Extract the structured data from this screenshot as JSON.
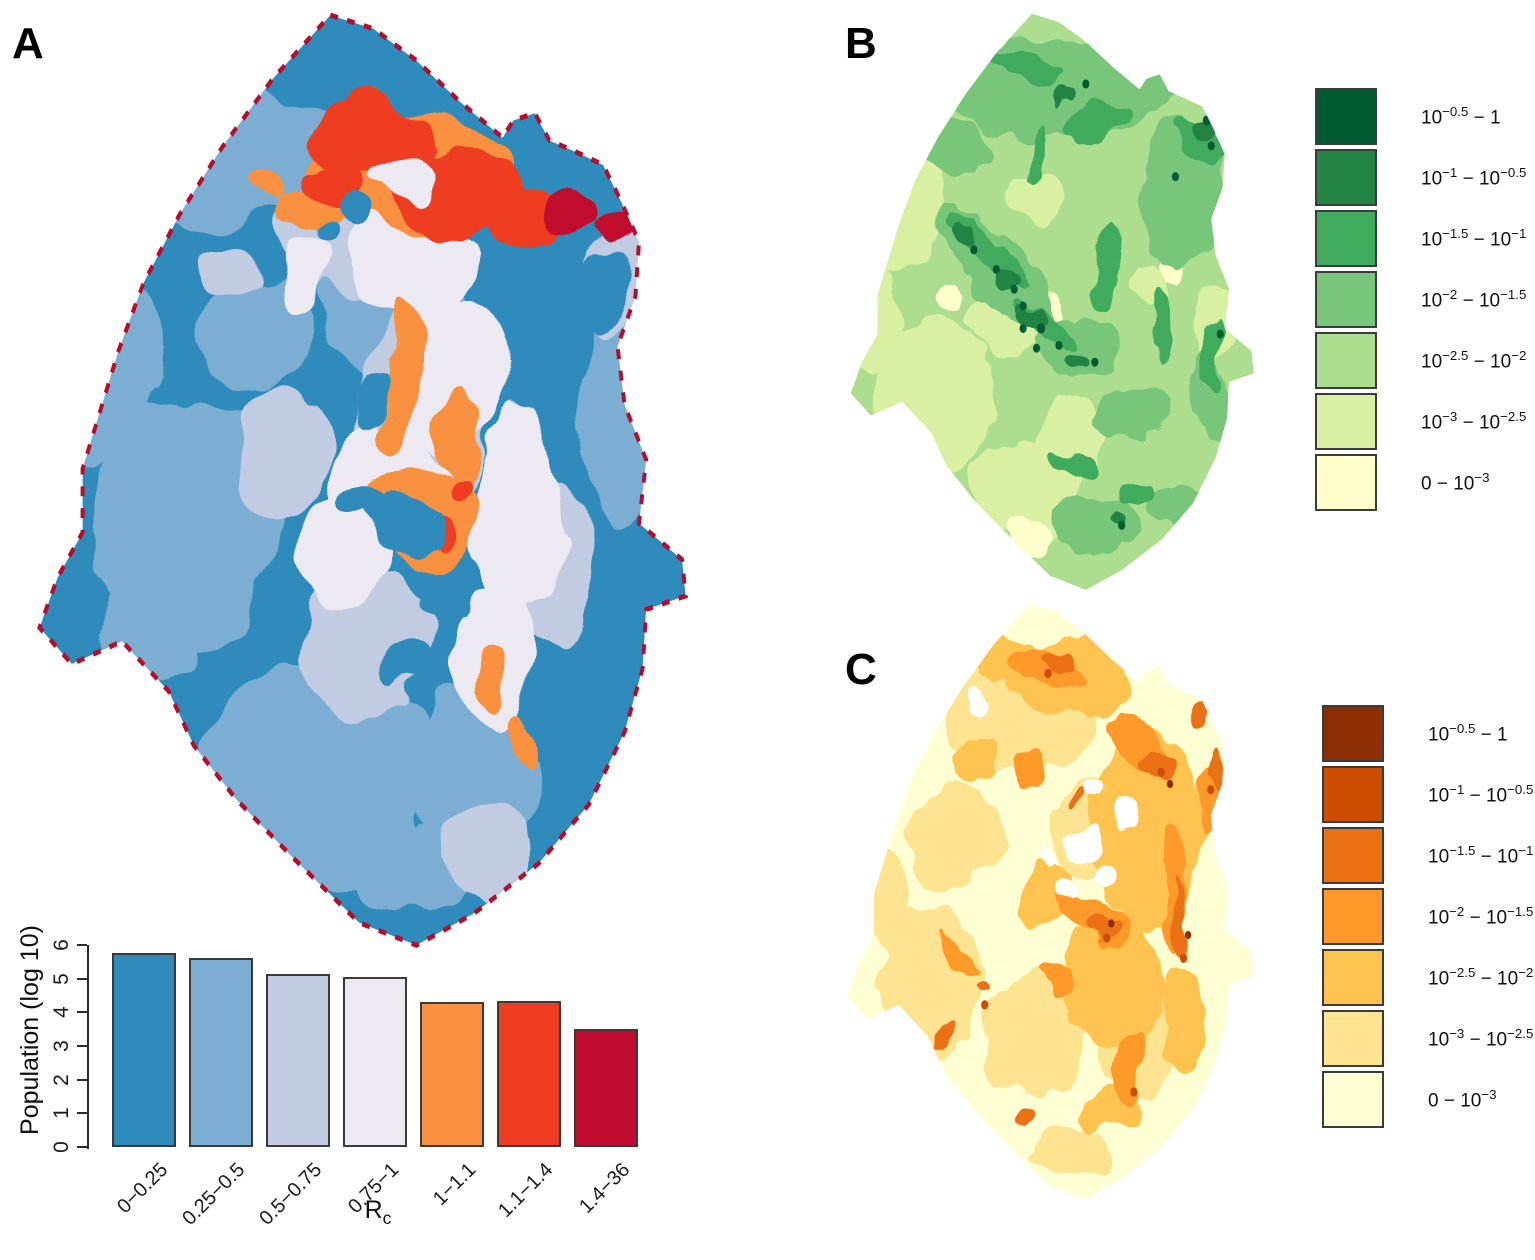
{
  "figure": {
    "background": "#ffffff"
  },
  "panels": {
    "a": {
      "label": "A"
    },
    "b": {
      "label": "B"
    },
    "c": {
      "label": "C"
    }
  },
  "palettes": {
    "a": [
      "#2f8bbb",
      "#7caed3",
      "#c1cbe2",
      "#ece9f2",
      "#fa9140",
      "#ef3c23",
      "#c00b2f"
    ],
    "a_border": "#b50d2c",
    "b": [
      "#005a32",
      "#238443",
      "#41ab5d",
      "#78c679",
      "#addd8e",
      "#d9f0a3",
      "#ffffcc"
    ],
    "c": [
      "#8c2d04",
      "#cc4c02",
      "#ec7014",
      "#fe9929",
      "#fec44f",
      "#fee391",
      "#ffffd4"
    ],
    "white": "#ffffff"
  },
  "chart_data": {
    "type": "bar",
    "title": "",
    "categories": [
      "0−0.25",
      "0.25−0.5",
      "0.5−0.75",
      "0.75−1",
      "1−1.1",
      "1.1−1.4",
      "1.4−36"
    ],
    "values": [
      5.75,
      5.6,
      5.15,
      5.05,
      4.3,
      4.35,
      3.5
    ],
    "bar_colors": [
      "#2f8bbb",
      "#7caed3",
      "#c1cbe2",
      "#ece9f2",
      "#fa9140",
      "#ef3c23",
      "#c00b2f"
    ],
    "ylabel": "Population (log 10)",
    "xlabel_base": "R",
    "xlabel_sub": "c",
    "yticks": [
      0,
      1,
      2,
      3,
      4,
      5,
      6
    ],
    "ylim": [
      0,
      6
    ],
    "grid": false,
    "axis_color": "#2b2b2b",
    "legend_position": "none"
  },
  "legend_b": {
    "entries": [
      {
        "color": "#005a32",
        "left_base": "10",
        "left_exp": "−0.5",
        "right_base": "1",
        "right_exp": ""
      },
      {
        "color": "#238443",
        "left_base": "10",
        "left_exp": "−1",
        "right_base": "10",
        "right_exp": "−0.5"
      },
      {
        "color": "#41ab5d",
        "left_base": "10",
        "left_exp": "−1.5",
        "right_base": "10",
        "right_exp": "−1"
      },
      {
        "color": "#78c679",
        "left_base": "10",
        "left_exp": "−2",
        "right_base": "10",
        "right_exp": "−1.5"
      },
      {
        "color": "#addd8e",
        "left_base": "10",
        "left_exp": "−2.5",
        "right_base": "10",
        "right_exp": "−2"
      },
      {
        "color": "#d9f0a3",
        "left_base": "10",
        "left_exp": "−3",
        "right_base": "10",
        "right_exp": "−2.5"
      },
      {
        "color": "#ffffcc",
        "left_base": "0",
        "left_exp": "",
        "right_base": "10",
        "right_exp": "−3"
      }
    ]
  },
  "legend_c": {
    "entries": [
      {
        "color": "#8c2d04",
        "left_base": "10",
        "left_exp": "−0.5",
        "right_base": "1",
        "right_exp": ""
      },
      {
        "color": "#cc4c02",
        "left_base": "10",
        "left_exp": "−1",
        "right_base": "10",
        "right_exp": "−0.5"
      },
      {
        "color": "#ec7014",
        "left_base": "10",
        "left_exp": "−1.5",
        "right_base": "10",
        "right_exp": "−1"
      },
      {
        "color": "#fe9929",
        "left_base": "10",
        "left_exp": "−2",
        "right_base": "10",
        "right_exp": "−1.5"
      },
      {
        "color": "#fec44f",
        "left_base": "10",
        "left_exp": "−2.5",
        "right_base": "10",
        "right_exp": "−2"
      },
      {
        "color": "#fee391",
        "left_base": "10",
        "left_exp": "−3",
        "right_base": "10",
        "right_exp": "−2.5"
      },
      {
        "color": "#ffffd4",
        "left_base": "0",
        "left_exp": "",
        "right_base": "10",
        "right_exp": "−3"
      }
    ]
  }
}
